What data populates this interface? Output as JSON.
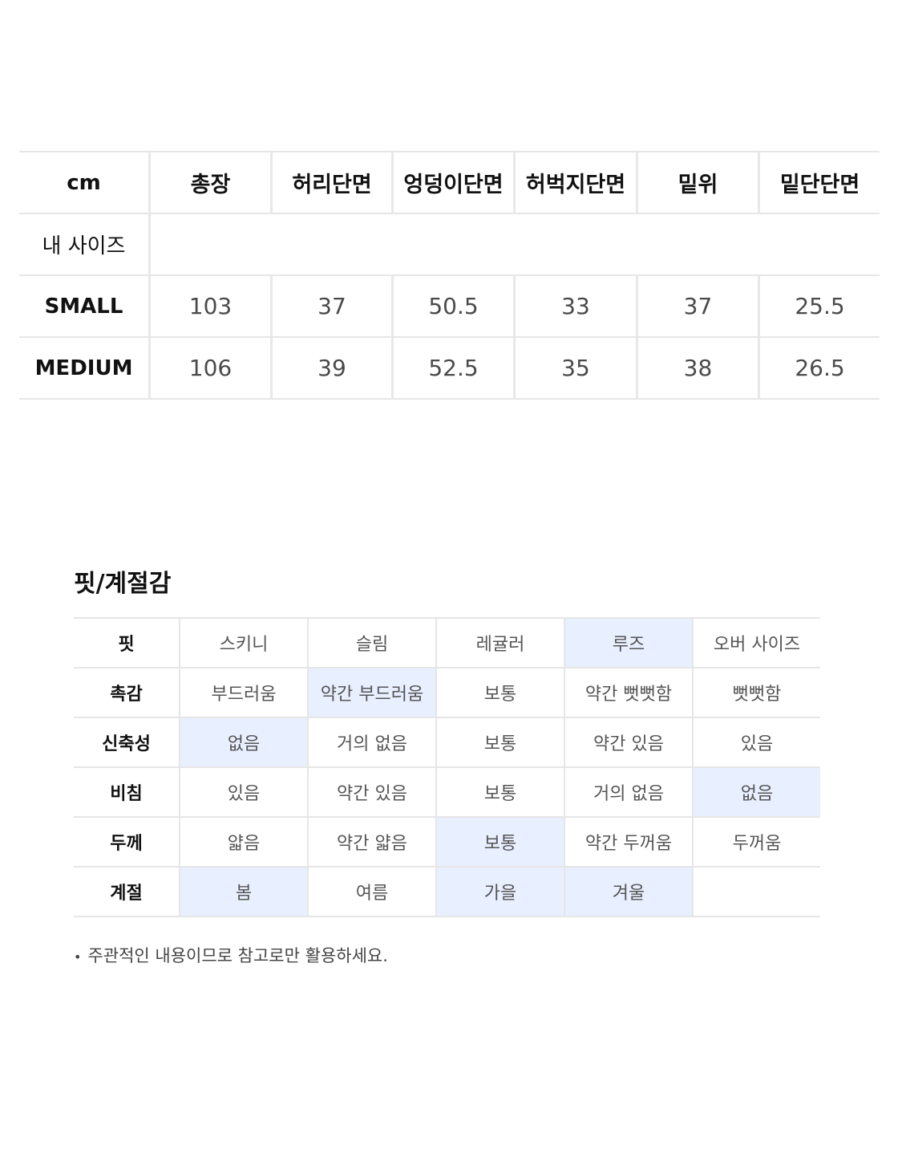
{
  "size_table": {
    "unit_label": "cm",
    "headers": [
      "총장",
      "허리단면",
      "엉덩이단면",
      "허벅지단면",
      "밑위",
      "밑단단면"
    ],
    "my_size_label": "내 사이즈",
    "rows": [
      {
        "label": "SMALL",
        "values": [
          "103",
          "37",
          "50.5",
          "33",
          "37",
          "25.5"
        ]
      },
      {
        "label": "MEDIUM",
        "values": [
          "106",
          "39",
          "52.5",
          "35",
          "38",
          "26.5"
        ]
      }
    ]
  },
  "fit_section": {
    "title": "핏/계절감",
    "selected_bg": "#e8efff",
    "rows": [
      {
        "label": "핏",
        "options": [
          {
            "text": "스키니",
            "selected": false
          },
          {
            "text": "슬림",
            "selected": false
          },
          {
            "text": "레귤러",
            "selected": false
          },
          {
            "text": "루즈",
            "selected": true
          },
          {
            "text": "오버 사이즈",
            "selected": false
          }
        ]
      },
      {
        "label": "촉감",
        "options": [
          {
            "text": "부드러움",
            "selected": false
          },
          {
            "text": "약간 부드러움",
            "selected": true
          },
          {
            "text": "보통",
            "selected": false
          },
          {
            "text": "약간 뻣뻣함",
            "selected": false
          },
          {
            "text": "뻣뻣함",
            "selected": false
          }
        ]
      },
      {
        "label": "신축성",
        "options": [
          {
            "text": "없음",
            "selected": true
          },
          {
            "text": "거의 없음",
            "selected": false
          },
          {
            "text": "보통",
            "selected": false
          },
          {
            "text": "약간 있음",
            "selected": false
          },
          {
            "text": "있음",
            "selected": false
          }
        ]
      },
      {
        "label": "비침",
        "options": [
          {
            "text": "있음",
            "selected": false
          },
          {
            "text": "약간 있음",
            "selected": false
          },
          {
            "text": "보통",
            "selected": false
          },
          {
            "text": "거의 없음",
            "selected": false
          },
          {
            "text": "없음",
            "selected": true
          }
        ]
      },
      {
        "label": "두께",
        "options": [
          {
            "text": "얇음",
            "selected": false
          },
          {
            "text": "약간 얇음",
            "selected": false
          },
          {
            "text": "보통",
            "selected": true
          },
          {
            "text": "약간 두꺼움",
            "selected": false
          },
          {
            "text": "두꺼움",
            "selected": false
          }
        ]
      },
      {
        "label": "계절",
        "options": [
          {
            "text": "봄",
            "selected": true
          },
          {
            "text": "여름",
            "selected": false
          },
          {
            "text": "가을",
            "selected": true
          },
          {
            "text": "겨울",
            "selected": true
          },
          {
            "text": "",
            "selected": false
          }
        ]
      }
    ],
    "footnote_bullet": "•",
    "footnote": "주관적인 내용이므로 참고로만 활용하세요."
  }
}
